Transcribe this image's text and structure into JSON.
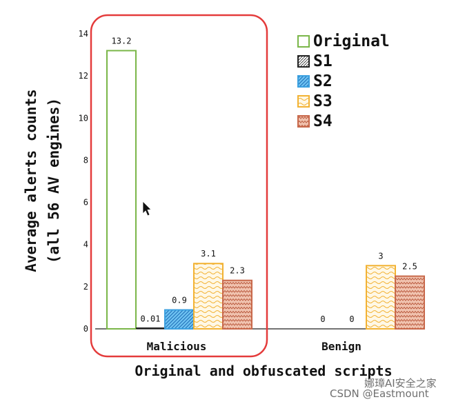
{
  "chart_data": {
    "type": "bar",
    "title": "",
    "xlabel": "Original and obfuscated scripts",
    "ylabel_line1": "Average alerts counts",
    "ylabel_line2": "(all 56 AV engines)",
    "ylim": [
      0,
      14
    ],
    "yticks": [
      "0",
      "2",
      "4",
      "6",
      "8",
      "10",
      "12",
      "14"
    ],
    "categories": [
      "Malicious",
      "Benign"
    ],
    "series": [
      {
        "name": "Original",
        "values": [
          13.2,
          null
        ],
        "labels": [
          "13.2",
          ""
        ],
        "color": "#7ab648",
        "pattern": "none"
      },
      {
        "name": "S1",
        "values": [
          0.01,
          0
        ],
        "labels": [
          "0.01",
          "0"
        ],
        "color": "#222222",
        "pattern": "hatch"
      },
      {
        "name": "S2",
        "values": [
          0.9,
          0
        ],
        "labels": [
          "0.9",
          "0"
        ],
        "color": "#3aa0e0",
        "pattern": "diagonal"
      },
      {
        "name": "S3",
        "values": [
          3.1,
          3
        ],
        "labels": [
          "3.1",
          "3"
        ],
        "color": "#f2b233",
        "pattern": "wave"
      },
      {
        "name": "S4",
        "values": [
          2.3,
          2.5
        ],
        "labels": [
          "2.3",
          "2.5"
        ],
        "color": "#c8684a",
        "pattern": "zigzag"
      }
    ],
    "legend_position": "top-right",
    "highlight": {
      "category": "Malicious",
      "color": "#e43b3b"
    },
    "grid": false
  },
  "watermark": {
    "line1": "娜璋AI安全之家",
    "line2": "CSDN @Eastmount"
  }
}
